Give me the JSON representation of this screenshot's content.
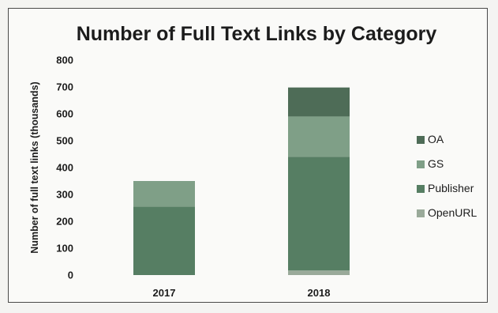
{
  "chart_data": {
    "type": "bar",
    "stacked": true,
    "title": "Number of Full Text Links by Category",
    "xlabel": "",
    "ylabel": "Number of full text links (thousands)",
    "ylim": [
      0,
      800
    ],
    "yticks": [
      "0",
      "100",
      "200",
      "300",
      "400",
      "500",
      "600",
      "700",
      "800"
    ],
    "grid": false,
    "legend_position": "right",
    "categories": [
      "2017",
      "2018"
    ],
    "series": [
      {
        "name": "OpenURL",
        "values": [
          0,
          17
        ],
        "color": "#9aaa9a"
      },
      {
        "name": "Publisher",
        "values": [
          255,
          423
        ],
        "color": "#567e63"
      },
      {
        "name": "GS",
        "values": [
          95,
          150
        ],
        "color": "#7f9f87"
      },
      {
        "name": "OA",
        "values": [
          0,
          108
        ],
        "color": "#4e6c57"
      }
    ],
    "legend_order": [
      "OA",
      "GS",
      "Publisher",
      "OpenURL"
    ]
  }
}
